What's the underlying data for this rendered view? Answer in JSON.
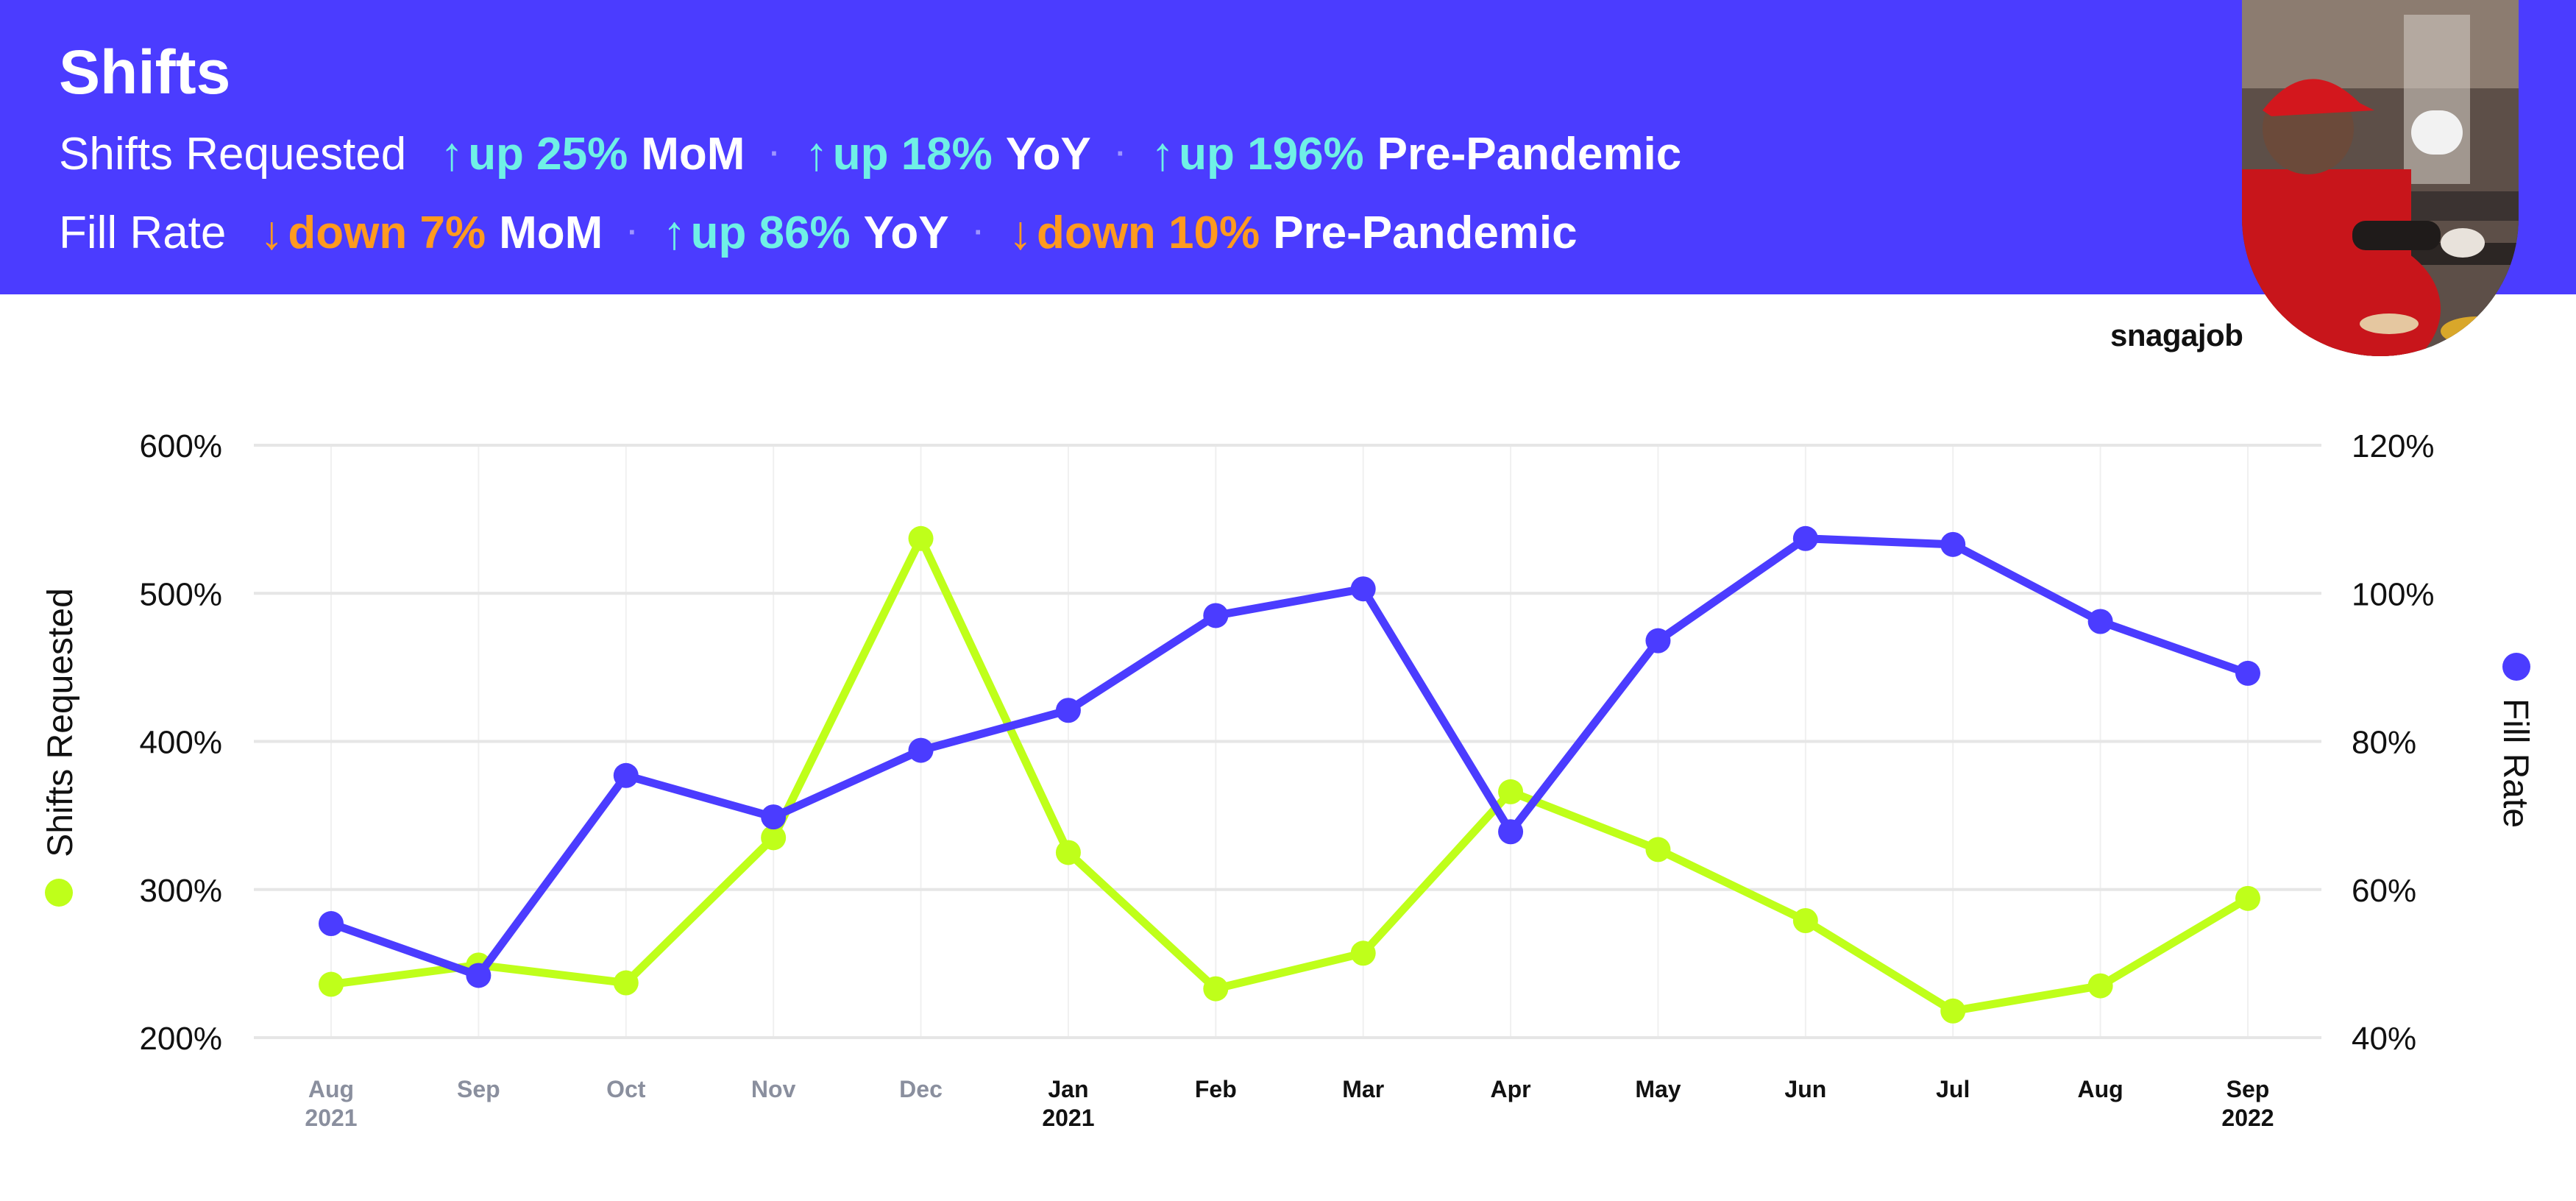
{
  "header": {
    "title": "Shifts",
    "rows": [
      {
        "label": "Shifts Requested",
        "stats": [
          {
            "direction": "up",
            "arrow": "↑",
            "text": "up 25%",
            "unit": "MoM"
          },
          {
            "direction": "up",
            "arrow": "↑",
            "text": "up 18%",
            "unit": "YoY"
          },
          {
            "direction": "up",
            "arrow": "↑",
            "text": "up 196%",
            "unit": "Pre-Pandemic"
          }
        ]
      },
      {
        "label": "Fill Rate",
        "stats": [
          {
            "direction": "down",
            "arrow": "↓",
            "text": "down 7%",
            "unit": "MoM"
          },
          {
            "direction": "up",
            "arrow": "↑",
            "text": "up 86%",
            "unit": "YoY"
          },
          {
            "direction": "down",
            "arrow": "↓",
            "text": "down 10%",
            "unit": "Pre-Pandemic"
          }
        ]
      }
    ],
    "separator": "·"
  },
  "brand": "snagajob",
  "colors": {
    "banner": "#4b3cff",
    "up": "#6ff0e6",
    "down": "#ff9a1f",
    "shifts_requested": "#bfff1a",
    "fill_rate": "#4b3cff",
    "grid": "#e6e6e6",
    "tick_muted": "#8a8f9e",
    "tick_dark": "#111111"
  },
  "chart_data": {
    "type": "line",
    "x": [
      {
        "month": "Aug",
        "year": "2021"
      },
      {
        "month": "Sep",
        "year": ""
      },
      {
        "month": "Oct",
        "year": ""
      },
      {
        "month": "Nov",
        "year": ""
      },
      {
        "month": "Dec",
        "year": ""
      },
      {
        "month": "Jan",
        "year": "2021"
      },
      {
        "month": "Feb",
        "year": ""
      },
      {
        "month": "Mar",
        "year": ""
      },
      {
        "month": "Apr",
        "year": ""
      },
      {
        "month": "May",
        "year": ""
      },
      {
        "month": "Jun",
        "year": ""
      },
      {
        "month": "Jul",
        "year": ""
      },
      {
        "month": "Aug",
        "year": ""
      },
      {
        "month": "Sep",
        "year": "2022"
      }
    ],
    "muted_ticks": 5,
    "series": [
      {
        "name": "Shifts Requested",
        "axis": "left",
        "values": [
          236,
          249,
          237,
          335,
          537,
          325,
          233,
          257,
          366,
          327,
          279,
          218,
          235,
          294
        ]
      },
      {
        "name": "Fill Rate",
        "axis": "right",
        "values": [
          55.4,
          48.4,
          75.4,
          69.8,
          78.8,
          84.2,
          97.0,
          100.6,
          67.8,
          93.6,
          107.4,
          106.6,
          96.2,
          89.2
        ]
      }
    ],
    "yleft": {
      "label": "Shifts Requested",
      "lim": [
        200,
        600
      ],
      "ticks": [
        "200%",
        "300%",
        "400%",
        "500%",
        "600%"
      ]
    },
    "yright": {
      "label": "Fill Rate",
      "lim": [
        40,
        120
      ],
      "ticks": [
        "40%",
        "60%",
        "80%",
        "100%",
        "120%"
      ]
    },
    "grid": true
  }
}
